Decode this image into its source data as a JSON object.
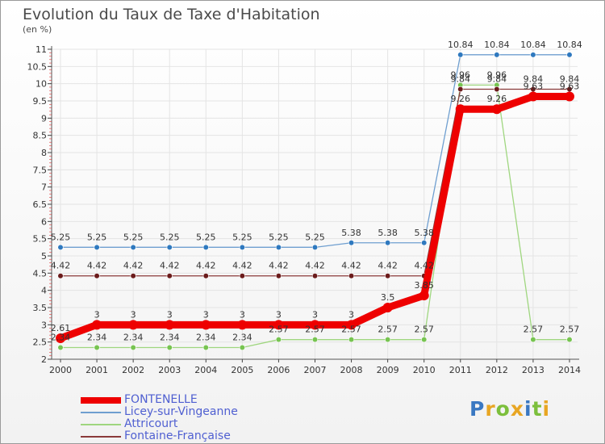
{
  "chart_data": {
    "type": "line",
    "title": "Evolution du Taux de Taxe d'Habitation",
    "subtitle": "(en %)",
    "xlabel": "",
    "ylabel": "",
    "x": [
      "2000",
      "2001",
      "2002",
      "2003",
      "2004",
      "2005",
      "2006",
      "2007",
      "2008",
      "2009",
      "2010",
      "2011",
      "2012",
      "2013",
      "2014"
    ],
    "ylim": [
      2,
      11
    ],
    "yticks": [
      "2",
      "2.5",
      "3",
      "3.5",
      "4",
      "4.5",
      "5",
      "5.5",
      "6",
      "6.5",
      "7",
      "7.5",
      "8",
      "8.5",
      "9",
      "9.5",
      "10",
      "10.5",
      "11"
    ],
    "grid": true,
    "legend_position": "bottom-left",
    "series": [
      {
        "name": "Licey-sur-Vingeanne",
        "color": "#6f9fd0",
        "marker": "#2f79bf",
        "values": [
          5.25,
          5.25,
          5.25,
          5.25,
          5.25,
          5.25,
          5.25,
          5.25,
          5.38,
          5.38,
          5.38,
          10.84,
          10.84,
          10.84,
          10.84
        ],
        "labels": [
          "5.25",
          "5.25",
          "5.25",
          "5.25",
          "5.25",
          "5.25",
          "5.25",
          "5.25",
          "5.38",
          "5.38",
          "5.38",
          "10.84",
          "10.84",
          "10.84",
          "10.84"
        ]
      },
      {
        "name": "Attricourt",
        "color": "#9fd67f",
        "marker": "#77c451",
        "values": [
          2.34,
          2.34,
          2.34,
          2.34,
          2.34,
          2.34,
          2.57,
          2.57,
          2.57,
          2.57,
          2.57,
          9.96,
          9.96,
          2.57,
          2.57
        ],
        "labels": [
          "2.34",
          "2.34",
          "2.34",
          "2.34",
          "2.34",
          "2.34",
          "2.57",
          "2.57",
          "2.57",
          "2.57",
          "2.57",
          "9.96",
          "9.96",
          "2.57",
          "2.57"
        ]
      },
      {
        "name": "Fontaine-Française",
        "color": "#8a3a3a",
        "marker": "#6b1b1b",
        "values": [
          4.42,
          4.42,
          4.42,
          4.42,
          4.42,
          4.42,
          4.42,
          4.42,
          4.42,
          4.42,
          4.42,
          9.84,
          9.84,
          9.84,
          9.84
        ],
        "labels": [
          "4.42",
          "4.42",
          "4.42",
          "4.42",
          "4.42",
          "4.42",
          "4.42",
          "4.42",
          "4.42",
          "4.42",
          "4.42",
          "9.84",
          "9.84",
          "9.84",
          "9.84"
        ]
      },
      {
        "name": "FONTENELLE",
        "color": "#ee0000",
        "marker": "#ee0000",
        "thick": true,
        "values": [
          2.61,
          3,
          3,
          3,
          3,
          3,
          3,
          3,
          3,
          3.5,
          3.85,
          9.26,
          9.26,
          9.63,
          9.63
        ],
        "labels": [
          "2.61",
          "3",
          "3",
          "3",
          "3",
          "3",
          "3",
          "3",
          "3",
          "3.5",
          "3.85",
          "9.26",
          "9.26",
          "9.63",
          "9.63"
        ]
      }
    ],
    "legend": [
      {
        "name": "FONTENELLE",
        "color": "#ee0000",
        "thick": true
      },
      {
        "name": "Licey-sur-Vingeanne",
        "color": "#6f9fd0",
        "thick": false
      },
      {
        "name": "Attricourt",
        "color": "#9fd67f",
        "thick": false
      },
      {
        "name": "Fontaine-Française",
        "color": "#8a3a3a",
        "thick": false
      }
    ]
  },
  "brand": {
    "text": "Proxiti",
    "colors": [
      "#3a78c2",
      "#e8a623",
      "#7cbf3c",
      "#e8a623",
      "#3a78c2",
      "#7cbf3c",
      "#e8a623"
    ]
  }
}
